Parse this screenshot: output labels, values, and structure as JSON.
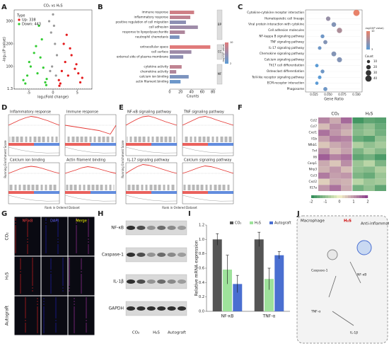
{
  "panel_labels": [
    "A",
    "B",
    "C",
    "D",
    "E",
    "F",
    "G",
    "H",
    "I",
    "J"
  ],
  "volcano": {
    "type": "scatter",
    "title": "CO₂ vs H₂S",
    "legend_title": "Type",
    "xlabel": "log₂(Fold change)",
    "ylabel": "-log₁₀(P value)",
    "xlim": [
      -8,
      8
    ],
    "xticks": [
      -5,
      0,
      5
    ],
    "ylim": [
      0,
      350
    ],
    "yticks": [
      1.3,
      100,
      200,
      300
    ],
    "series": [
      {
        "name": "Up: 338",
        "color": "#e41a1c",
        "x": [
          1.2,
          1.8,
          2.5,
          3.1,
          3.8,
          4.5,
          5.2,
          6,
          2.2,
          1.5,
          3.5,
          4.8,
          2.8,
          5.6,
          1.3
        ],
        "values": [
          40,
          80,
          120,
          60,
          150,
          90,
          70,
          50,
          200,
          25,
          180,
          110,
          240,
          30,
          15
        ]
      },
      {
        "name": "Down: 443",
        "color": "#33cc33",
        "x": [
          -1.3,
          -2,
          -2.6,
          -3.2,
          -3.9,
          -4.6,
          -5.3,
          -6.1,
          -2.3,
          -1.6,
          -3.5,
          -4.9,
          -2.9,
          -5.7,
          -1.4
        ],
        "values": [
          45,
          95,
          140,
          70,
          160,
          100,
          60,
          40,
          220,
          30,
          190,
          120,
          280,
          25,
          18
        ]
      },
      {
        "color": "#999999",
        "x": [
          -0.8,
          -0.4,
          0,
          0.4,
          0.8,
          -0.2,
          0.2,
          0.6,
          -0.6
        ],
        "values": [
          300,
          250,
          330,
          200,
          150,
          100,
          280,
          60,
          80
        ]
      }
    ]
  },
  "go": {
    "type": "bar",
    "xlabel": "Counts",
    "xlim": [
      0,
      85
    ],
    "xticks": [
      0,
      20,
      40,
      60,
      80
    ],
    "legend_title": "-log10(P value)",
    "clim": [
      2,
      10
    ],
    "colors": [
      "#5b9bd5",
      "#e07a7a"
    ],
    "groups": [
      {
        "name": "BP",
        "terms": [
          "immune response",
          "inflammatory response",
          "positive regulation of cell migration",
          "cell adhesion",
          "response to lipopolysaccharide",
          "neutrophil chemotaxis"
        ],
        "counts": [
          45,
          38,
          30,
          52,
          28,
          18
        ],
        "pvalues": [
          9,
          8,
          5,
          6,
          7,
          4
        ]
      },
      {
        "name": "CC",
        "terms": [
          "extracellular space",
          "cell surface",
          "external side of plasma membrane"
        ],
        "counts": [
          75,
          40,
          25
        ],
        "pvalues": [
          10,
          6,
          5
        ]
      },
      {
        "name": "MF",
        "terms": [
          "cytokine activity",
          "chemokine activity",
          "calcium ion binding",
          "actin filament binding"
        ],
        "counts": [
          22,
          12,
          35,
          20
        ],
        "pvalues": [
          8,
          7,
          4,
          3
        ]
      }
    ]
  },
  "kegg": {
    "type": "scatter",
    "xlabel": "Gene Ratio",
    "xlim": [
      0.01,
      0.11
    ],
    "xticks": [
      {
        "value": 0.025,
        "label": "0.025"
      },
      {
        "value": 0.05,
        "label": "0.050"
      },
      {
        "value": 0.075,
        "label": "0.075"
      },
      {
        "value": 0.1,
        "label": "0.100"
      }
    ],
    "color_title": "-log10(P value)",
    "size_title": "Count",
    "size_ticks": [
      10,
      20,
      30,
      40
    ],
    "clim": [
      3,
      10
    ],
    "colors": [
      "#5b9bd5",
      "#e8826a"
    ],
    "terms": [
      "Cytokine-cytokine receptor interaction",
      "Hematopoietic cell lineage",
      "Viral protein interaction with cytokine",
      "Cell adhesion molecules",
      "NF-kappa B signaling pathway",
      "TNF signaling pathway",
      "IL-17 signaling pathway",
      "Chemokine signaling pathway",
      "Calcium signaling pathway",
      "Th17 cell differentiation",
      "Osteoclast differentiation",
      "Toll-like receptor signaling pathway",
      "ECM-receptor interaction",
      "Phagosome"
    ],
    "x": [
      0.1,
      0.05,
      0.06,
      0.07,
      0.04,
      0.045,
      0.035,
      0.06,
      0.07,
      0.03,
      0.04,
      0.035,
      0.03,
      0.045
    ],
    "counts": [
      40,
      20,
      22,
      28,
      15,
      17,
      13,
      24,
      26,
      12,
      15,
      13,
      11,
      17
    ],
    "pvalues": [
      10,
      6,
      5,
      7,
      4,
      5,
      4,
      5,
      5,
      3,
      4,
      3,
      3,
      4
    ]
  },
  "gsea": {
    "ylabel": "Running Enrichment Score",
    "xlabel": "Rank in Ordered Dataset",
    "ylim": [
      -0.6,
      0.6
    ],
    "color": "#e53935",
    "plots": [
      {
        "title": "Inflammatory response",
        "es": [
          0,
          0.15,
          0.3,
          0.42,
          0.5,
          0.45,
          0.35,
          0.25,
          0.12,
          0
        ]
      },
      {
        "title": "Immune response",
        "es": [
          0,
          -0.05,
          -0.1,
          -0.15,
          -0.2,
          -0.25,
          -0.3,
          -0.4,
          -0.5,
          0
        ]
      },
      {
        "title": "Calcium ion binding",
        "es": [
          0,
          0.12,
          0.25,
          0.35,
          0.4,
          0.36,
          0.28,
          0.18,
          0.08,
          0
        ]
      },
      {
        "title": "Actin filament binding",
        "es": [
          0,
          0.1,
          0.2,
          0.32,
          0.38,
          0.33,
          0.25,
          0.16,
          0.07,
          0
        ]
      },
      {
        "title": "NF-κB signaling pathway",
        "es": [
          0,
          0.18,
          0.35,
          0.48,
          0.52,
          0.44,
          0.32,
          0.2,
          0.1,
          0
        ]
      },
      {
        "title": "TNF signaling pathway",
        "es": [
          0,
          0.15,
          0.3,
          0.45,
          0.5,
          0.42,
          0.3,
          0.2,
          0.1,
          0
        ]
      },
      {
        "title": "IL-17 signaling pathway",
        "es": [
          0,
          0.2,
          0.38,
          0.5,
          0.46,
          0.38,
          0.28,
          0.18,
          0.08,
          0
        ]
      },
      {
        "title": "Calcium signaling pathway",
        "es": [
          0,
          0.1,
          0.22,
          0.34,
          0.42,
          0.38,
          0.3,
          0.2,
          0.1,
          0
        ]
      }
    ]
  },
  "heatmap": {
    "type": "heatmap",
    "groups": [
      "CO₂",
      "H₂S"
    ],
    "genes": [
      "Ccl2",
      "Ccl7",
      "Cxcl1",
      "Il1b",
      "Nfkb1",
      "Tnf",
      "Il6",
      "Casp1",
      "Nlrp3",
      "Ccl3",
      "Cxcl2",
      "Il17a"
    ],
    "values": [
      [
        1.2,
        0.8,
        1.5,
        -1.8,
        -1.5,
        -1.6
      ],
      [
        0.6,
        1.1,
        0.9,
        -1.2,
        -1.0,
        -1.4
      ],
      [
        1.4,
        1.0,
        0.7,
        -1.1,
        -0.9,
        -1.3
      ],
      [
        0.9,
        1.3,
        1.2,
        -1.4,
        -1.6,
        -1.0
      ],
      [
        0.5,
        0.8,
        1.0,
        -0.7,
        -1.0,
        -0.8
      ],
      [
        1.1,
        0.6,
        0.9,
        -1.2,
        -0.8,
        -1.1
      ],
      [
        1.6,
        1.2,
        1.4,
        -1.5,
        -1.3,
        -1.7
      ],
      [
        0.8,
        0.5,
        1.1,
        -0.9,
        -0.6,
        -1.2
      ],
      [
        0.7,
        1.0,
        0.6,
        -1.0,
        -1.1,
        -0.7
      ],
      [
        1.3,
        0.9,
        1.0,
        -1.2,
        -1.4,
        -0.9
      ],
      [
        0.4,
        0.8,
        0.7,
        -0.6,
        -0.9,
        -0.8
      ],
      [
        1.0,
        1.4,
        0.8,
        -1.3,
        -1.0,
        -1.5
      ]
    ],
    "clim": [
      -2,
      2
    ],
    "cticks": [
      -2,
      -1,
      0,
      1,
      2
    ],
    "colors": [
      "#2e8b57",
      "#f4f4c8",
      "#8b3a8b"
    ]
  },
  "if": {
    "channels": [
      "NF-κB",
      "DAPI",
      "Merge"
    ],
    "groups": [
      "CO₂",
      "H₂S",
      "Autograft"
    ]
  },
  "wb": {
    "proteins": [
      "NF-κB",
      "Caspase-1",
      "IL-1β",
      "GAPDH"
    ],
    "lanes": [
      "CO₂",
      "H₂S",
      "Autograft"
    ]
  },
  "qpcr": {
    "type": "bar",
    "ylabel": "Relative mRNA expression",
    "ylim": [
      0,
      1.2
    ],
    "yticks": [
      {
        "value": 0,
        "label": "0.0"
      },
      0.2,
      0.4,
      0.6,
      0.8,
      {
        "value": 1,
        "label": "1.0"
      },
      1.2
    ],
    "categories": [
      "NF-κB",
      "TNF-α"
    ],
    "series": [
      {
        "name": "CO₂",
        "color": "#555555",
        "values": [
          1,
          1
        ],
        "errors": [
          0.08,
          0.1
        ]
      },
      {
        "name": "H₂S",
        "color": "#9ee29b",
        "values": [
          0.58,
          0.45
        ],
        "errors": [
          0.2,
          0.15
        ]
      },
      {
        "name": "Autograft",
        "color": "#4a6fd1",
        "values": [
          0.38,
          0.78
        ],
        "errors": [
          0.12,
          0.05
        ]
      }
    ]
  },
  "scheme": {
    "labels": [
      "Macrophage",
      "H₂S",
      "Anti-inflammation",
      "Caspase-1",
      "NF-κB",
      "TNF-α",
      "IL-1β"
    ]
  }
}
